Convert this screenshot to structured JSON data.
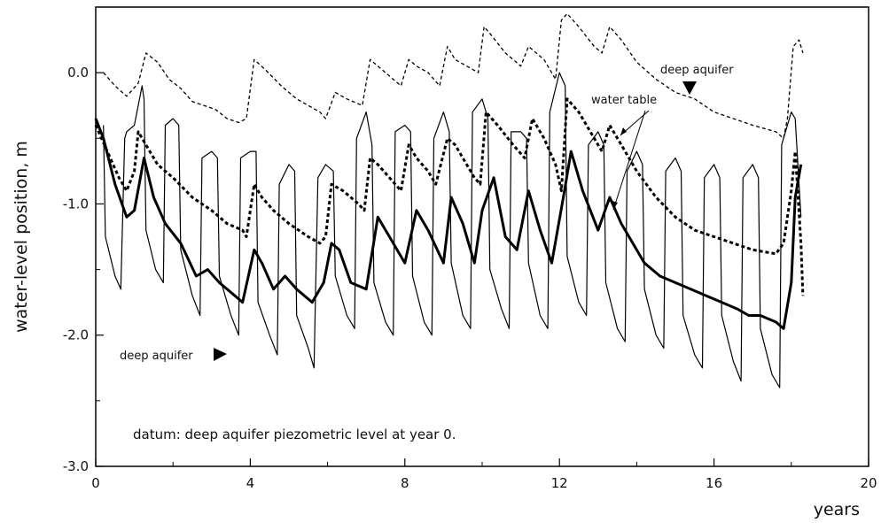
{
  "chart_data": {
    "type": "line",
    "title": "",
    "xlabel": "years",
    "ylabel": "water-level position, m",
    "xlim": [
      0,
      20
    ],
    "ylim": [
      -3.0,
      0.5
    ],
    "x_ticks": [
      0,
      4,
      8,
      12,
      16,
      20
    ],
    "x_minor_ticks": [
      2,
      6,
      10,
      14,
      18
    ],
    "x_tick_labels": [
      "0",
      "4",
      "8",
      "12",
      "16",
      "20"
    ],
    "y_ticks": [
      0.0,
      -1.0,
      -2.0,
      -3.0
    ],
    "y_minor_ticks": [
      -0.5,
      -1.5,
      -2.5
    ],
    "y_tick_labels": [
      "0.0",
      "-1.0",
      "-2.0",
      "-3.0"
    ],
    "grid": false,
    "annotations": {
      "datum": "datum: deep aquifer piezometric level at year 0.",
      "deep_aquifer_upper": "deep aquifer",
      "water_table": "water table",
      "deep_aquifer_lower": "deep aquifer"
    },
    "series": [
      {
        "style": "thin dashed",
        "x": [
          0.2,
          0.5,
          0.8,
          1.1,
          1.3,
          1.6,
          1.9,
          2.2,
          2.5,
          2.8,
          3.1,
          3.4,
          3.7,
          3.9,
          4.1,
          4.4,
          4.8,
          5.2,
          5.5,
          5.8,
          5.95,
          6.2,
          6.5,
          6.9,
          7.1,
          7.3,
          7.7,
          7.9,
          8.1,
          8.3,
          8.6,
          8.9,
          9.1,
          9.3,
          9.6,
          9.9,
          10.05,
          10.2,
          10.6,
          11.0,
          11.2,
          11.6,
          11.9,
          12.05,
          12.2,
          12.5,
          12.9,
          13.1,
          13.3,
          13.6,
          14.0,
          14.5,
          15.0,
          15.5,
          16.0,
          16.5,
          17.0,
          17.6,
          17.8,
          17.9,
          18.05,
          18.2,
          18.3
        ],
        "y": [
          0.0,
          -0.1,
          -0.18,
          -0.08,
          0.15,
          0.08,
          -0.05,
          -0.12,
          -0.22,
          -0.25,
          -0.28,
          -0.35,
          -0.38,
          -0.35,
          0.1,
          0.02,
          -0.1,
          -0.2,
          -0.25,
          -0.3,
          -0.35,
          -0.15,
          -0.2,
          -0.25,
          0.1,
          0.05,
          -0.05,
          -0.1,
          0.1,
          0.05,
          0.0,
          -0.1,
          0.2,
          0.1,
          0.05,
          0.0,
          0.35,
          0.3,
          0.15,
          0.05,
          0.2,
          0.1,
          -0.05,
          0.4,
          0.45,
          0.35,
          0.2,
          0.15,
          0.35,
          0.25,
          0.08,
          -0.05,
          -0.15,
          -0.2,
          -0.3,
          -0.35,
          -0.4,
          -0.45,
          -0.5,
          -0.35,
          0.2,
          0.25,
          0.15
        ]
      },
      {
        "style": "thick dashed",
        "x": [
          0.0,
          0.3,
          0.6,
          0.8,
          1.0,
          1.1,
          1.3,
          1.6,
          2.0,
          2.5,
          3.0,
          3.4,
          3.8,
          3.9,
          4.1,
          4.3,
          4.6,
          5.0,
          5.5,
          5.8,
          5.95,
          6.1,
          6.4,
          6.8,
          6.95,
          7.1,
          7.3,
          7.6,
          7.9,
          8.1,
          8.3,
          8.6,
          8.8,
          9.1,
          9.3,
          9.5,
          9.8,
          9.95,
          10.1,
          10.4,
          10.8,
          11.1,
          11.3,
          11.6,
          11.9,
          12.05,
          12.2,
          12.5,
          12.9,
          13.1,
          13.3,
          13.6,
          14.0,
          14.5,
          15.0,
          15.5,
          16.0,
          16.5,
          17.0,
          17.6,
          17.8,
          18.0,
          18.1,
          18.25,
          18.3
        ],
        "y": [
          -0.4,
          -0.6,
          -0.8,
          -0.9,
          -0.75,
          -0.45,
          -0.55,
          -0.7,
          -0.8,
          -0.95,
          -1.05,
          -1.15,
          -1.2,
          -1.25,
          -0.85,
          -0.95,
          -1.05,
          -1.15,
          -1.25,
          -1.3,
          -1.25,
          -0.85,
          -0.9,
          -1.0,
          -1.05,
          -0.65,
          -0.7,
          -0.8,
          -0.9,
          -0.55,
          -0.65,
          -0.75,
          -0.85,
          -0.5,
          -0.55,
          -0.65,
          -0.8,
          -0.85,
          -0.3,
          -0.4,
          -0.55,
          -0.65,
          -0.35,
          -0.5,
          -0.7,
          -0.9,
          -0.2,
          -0.3,
          -0.5,
          -0.6,
          -0.4,
          -0.55,
          -0.75,
          -0.95,
          -1.1,
          -1.2,
          -1.25,
          -1.3,
          -1.35,
          -1.38,
          -1.3,
          -0.9,
          -0.6,
          -1.3,
          -1.7
        ]
      },
      {
        "style": "thick solid",
        "x": [
          0.0,
          0.2,
          0.5,
          0.8,
          1.0,
          1.25,
          1.5,
          1.8,
          2.2,
          2.6,
          2.9,
          3.2,
          3.6,
          3.8,
          4.1,
          4.3,
          4.6,
          4.9,
          5.2,
          5.6,
          5.9,
          6.1,
          6.3,
          6.6,
          7.0,
          7.3,
          7.6,
          8.0,
          8.3,
          8.6,
          9.0,
          9.2,
          9.5,
          9.8,
          10.0,
          10.3,
          10.6,
          10.9,
          11.2,
          11.5,
          11.8,
          12.1,
          12.3,
          12.6,
          13.0,
          13.3,
          13.6,
          13.9,
          14.2,
          14.6,
          15.0,
          15.4,
          15.8,
          16.2,
          16.6,
          16.9,
          17.2,
          17.6,
          17.8,
          18.0,
          18.1,
          18.25
        ],
        "y": [
          -0.35,
          -0.5,
          -0.85,
          -1.1,
          -1.05,
          -0.65,
          -0.95,
          -1.15,
          -1.3,
          -1.55,
          -1.5,
          -1.6,
          -1.7,
          -1.75,
          -1.35,
          -1.45,
          -1.65,
          -1.55,
          -1.65,
          -1.75,
          -1.6,
          -1.3,
          -1.35,
          -1.6,
          -1.65,
          -1.1,
          -1.25,
          -1.45,
          -1.05,
          -1.2,
          -1.45,
          -0.95,
          -1.15,
          -1.45,
          -1.05,
          -0.8,
          -1.25,
          -1.35,
          -0.9,
          -1.2,
          -1.45,
          -0.95,
          -0.6,
          -0.9,
          -1.2,
          -0.95,
          -1.15,
          -1.3,
          -1.45,
          -1.55,
          -1.6,
          -1.65,
          -1.7,
          -1.75,
          -1.8,
          -1.85,
          -1.85,
          -1.9,
          -1.95,
          -1.6,
          -0.95,
          -0.7
        ]
      },
      {
        "style": "thin solid",
        "x": [
          0.2,
          0.25,
          0.5,
          0.65,
          0.75,
          0.8,
          1.0,
          1.2,
          1.25,
          1.3,
          1.55,
          1.75,
          1.8,
          2.0,
          2.15,
          2.2,
          2.5,
          2.7,
          2.75,
          3.0,
          3.15,
          3.2,
          3.5,
          3.7,
          3.75,
          4.0,
          4.15,
          4.2,
          4.5,
          4.7,
          4.75,
          5.0,
          5.15,
          5.2,
          5.5,
          5.65,
          5.75,
          5.95,
          6.15,
          6.2,
          6.5,
          6.7,
          6.75,
          7.0,
          7.15,
          7.2,
          7.5,
          7.7,
          7.75,
          8.0,
          8.15,
          8.2,
          8.5,
          8.7,
          8.75,
          9.0,
          9.15,
          9.2,
          9.5,
          9.7,
          9.75,
          10.0,
          10.15,
          10.2,
          10.5,
          10.7,
          10.75,
          11.0,
          11.15,
          11.2,
          11.5,
          11.7,
          11.75,
          12.0,
          12.15,
          12.2,
          12.5,
          12.7,
          12.75,
          13.0,
          13.15,
          13.2,
          13.5,
          13.7,
          13.75,
          14.0,
          14.15,
          14.2,
          14.5,
          14.7,
          14.75,
          15.0,
          15.15,
          15.2,
          15.5,
          15.7,
          15.75,
          16.0,
          16.15,
          16.2,
          16.5,
          16.7,
          16.75,
          17.0,
          17.15,
          17.2,
          17.5,
          17.7,
          17.75,
          18.0,
          18.1,
          18.25
        ],
        "y": [
          -0.4,
          -1.25,
          -1.55,
          -1.65,
          -0.5,
          -0.45,
          -0.4,
          -0.1,
          -0.2,
          -1.2,
          -1.5,
          -1.6,
          -0.4,
          -0.35,
          -0.4,
          -1.35,
          -1.7,
          -1.85,
          -0.65,
          -0.6,
          -0.65,
          -1.55,
          -1.85,
          -2.0,
          -0.65,
          -0.6,
          -0.6,
          -1.75,
          -2.0,
          -2.15,
          -0.85,
          -0.7,
          -0.75,
          -1.85,
          -2.1,
          -2.25,
          -0.8,
          -0.7,
          -0.75,
          -1.55,
          -1.85,
          -1.95,
          -0.5,
          -0.3,
          -0.55,
          -1.6,
          -1.9,
          -2.0,
          -0.45,
          -0.4,
          -0.45,
          -1.55,
          -1.9,
          -2.0,
          -0.5,
          -0.3,
          -0.45,
          -1.45,
          -1.85,
          -1.95,
          -0.3,
          -0.2,
          -0.35,
          -1.5,
          -1.8,
          -1.95,
          -0.45,
          -0.45,
          -0.5,
          -1.45,
          -1.85,
          -1.95,
          -0.3,
          0.0,
          -0.1,
          -1.4,
          -1.75,
          -1.85,
          -0.55,
          -0.45,
          -0.55,
          -1.6,
          -1.95,
          -2.05,
          -0.75,
          -0.6,
          -0.7,
          -1.65,
          -2.0,
          -2.1,
          -0.75,
          -0.65,
          -0.75,
          -1.85,
          -2.15,
          -2.25,
          -0.8,
          -0.7,
          -0.8,
          -1.85,
          -2.2,
          -2.35,
          -0.8,
          -0.7,
          -0.8,
          -1.95,
          -2.3,
          -2.4,
          -0.55,
          -0.3,
          -0.35,
          -1.1
        ]
      }
    ]
  }
}
